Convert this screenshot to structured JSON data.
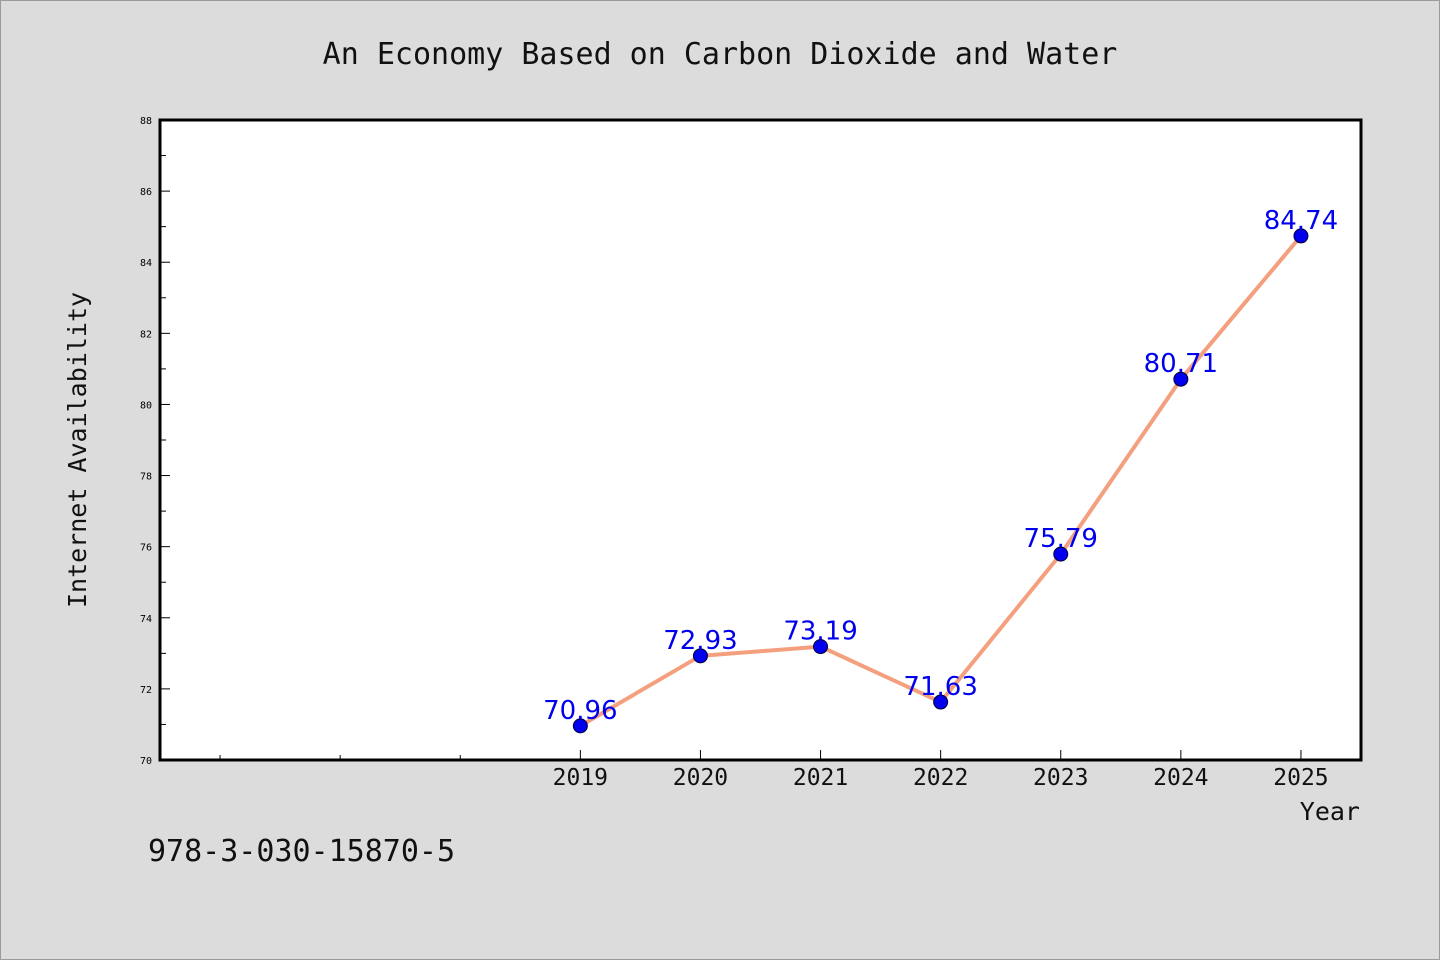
{
  "chart_data": {
    "type": "line",
    "title": "An Economy Based on Carbon Dioxide and Water",
    "xlabel": "Year",
    "ylabel": "Internet Availability",
    "categories": [
      "2019",
      "2020",
      "2021",
      "2022",
      "2023",
      "2024",
      "2025"
    ],
    "series": [
      {
        "values": [
          70.96,
          72.93,
          73.19,
          71.63,
          75.79,
          80.71,
          84.74
        ]
      }
    ],
    "data_labels": [
      "70.96",
      "72.93",
      "73.19",
      "71.63",
      "75.79",
      "80.71",
      "84.74"
    ],
    "x_tick_labels": [
      "2019",
      "2020",
      "2021",
      "2022",
      "2023",
      "2024",
      "2025"
    ],
    "y_tick_labels": [
      "70",
      "72",
      "74",
      "76",
      "78",
      "80",
      "82",
      "84",
      "86",
      "88"
    ],
    "xlim": [
      2015.5,
      2025.5
    ],
    "ylim": [
      70,
      88
    ],
    "grid": false,
    "legend": "none",
    "colors": {
      "line": "#f4a07e",
      "marker": "#0000ee",
      "label": "#0000ee",
      "background": "#dcdcdc",
      "plot_background": "#ffffff"
    }
  },
  "footer": {
    "isbn": "978-3-030-15870-5"
  }
}
